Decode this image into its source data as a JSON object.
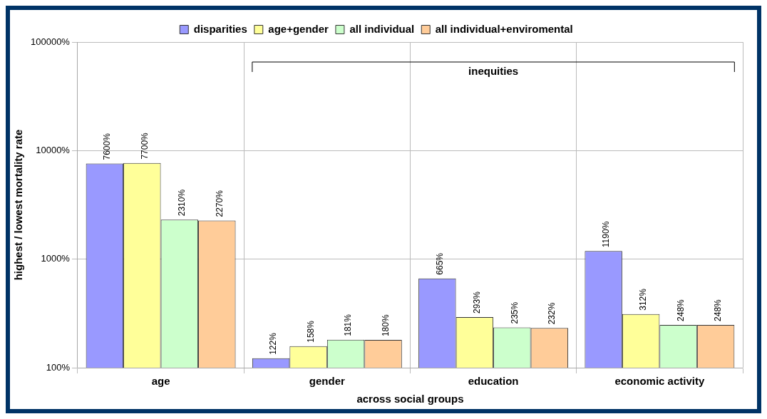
{
  "chart_data": {
    "type": "bar",
    "xlabel": "across social groups",
    "ylabel": "highest / lowest mortality rate",
    "categories": [
      "age",
      "gender",
      "education",
      "economic activity"
    ],
    "series": [
      {
        "name": "disparities",
        "color": "#9999ff",
        "values": [
          7600,
          122,
          665,
          1190
        ],
        "value_labels": [
          "7600%",
          "122%",
          "665%",
          "1190%"
        ]
      },
      {
        "name": "age+gender",
        "color": "#ffff99",
        "values": [
          7700,
          158,
          293,
          312
        ],
        "value_labels": [
          "7700%",
          "158%",
          "293%",
          "312%"
        ]
      },
      {
        "name": "all individual",
        "color": "#ccffcc",
        "values": [
          2310,
          181,
          235,
          248
        ],
        "value_labels": [
          "2310%",
          "181%",
          "235%",
          "248%"
        ]
      },
      {
        "name": "all individual+enviromental",
        "color": "#ffcc99",
        "values": [
          2270,
          180,
          232,
          248
        ],
        "value_labels": [
          "2270%",
          "180%",
          "232%",
          "248%"
        ]
      }
    ],
    "log": "y",
    "ylim": [
      100,
      100000
    ],
    "yticks": [
      {
        "value": 100,
        "label": "100%"
      },
      {
        "value": 1000,
        "label": "1000%"
      },
      {
        "value": 10000,
        "label": "10000%"
      },
      {
        "value": 100000,
        "label": "100000%"
      }
    ],
    "grid": true,
    "legend": "top",
    "annotations": [
      "inequities"
    ]
  }
}
